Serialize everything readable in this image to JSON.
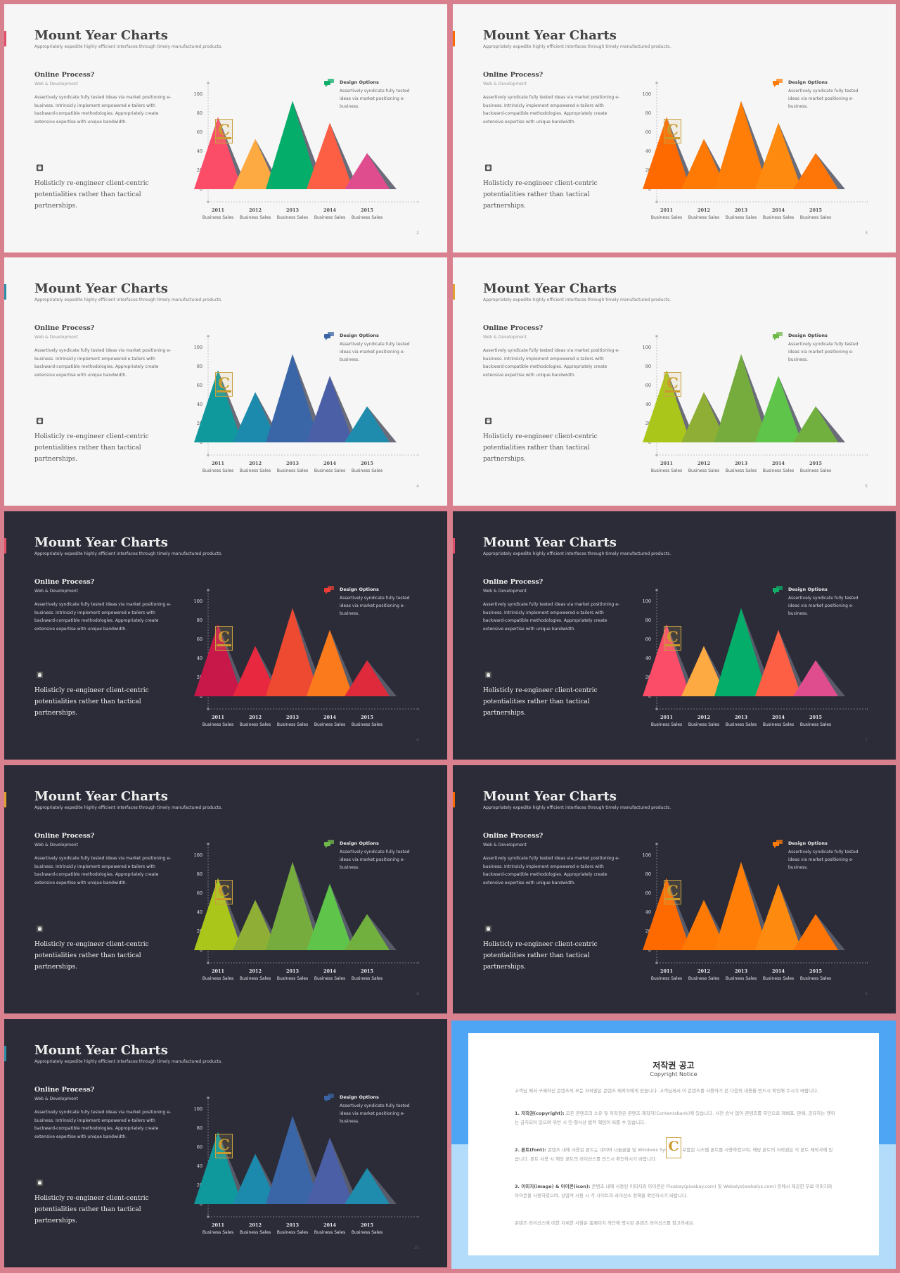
{
  "slide_common": {
    "title": "Mount Year Charts",
    "subtitle": "Appropriately expedite highly efficient interfaces through timely manufactured products.",
    "online_heading": "Online Process?",
    "online_sub": "Web & Development",
    "body": "Assertively syndicate fully tested ideas via market positioning e-business. Intrinsicly implement empowered e-tailers with backward-compatible methodologies. Appropriately create extensive expertise with unique bandwidth.",
    "holistic": "Holisticly re-engineer client-centric potentialities rather than tactical partnerships.",
    "design_title": "Design Options",
    "design_text": "Assertively syndicate fully tested ideas via market positioning e-business.",
    "logo_letter": "C"
  },
  "chart_data": {
    "type": "area",
    "categories": [
      "2011",
      "2012",
      "2013",
      "2014",
      "2015"
    ],
    "category_sublabel": "Business Sales",
    "values": [
      76,
      53,
      93,
      70,
      38
    ],
    "y_ticks": [
      "0",
      "20",
      "40",
      "60",
      "80",
      "100"
    ],
    "ylim": [
      0,
      100
    ]
  },
  "slides": [
    {
      "theme": "light",
      "page": "2",
      "accent": "#e0506a",
      "icon_color": "#0fae6a",
      "colors": [
        "#fb4d68",
        "#fdaa43",
        "#04ad6a",
        "#fd5f45",
        "#e04d8f"
      ]
    },
    {
      "theme": "light",
      "page": "3",
      "accent": "#ff6a00",
      "icon_color": "#ff7c0a",
      "colors": [
        "#ff6a00",
        "#ff7a05",
        "#ff7e08",
        "#ff8a10",
        "#ff7608"
      ]
    },
    {
      "theme": "light",
      "page": "4",
      "accent": "#2c8fa8",
      "icon_color": "#3a64a3",
      "colors": [
        "#10999c",
        "#1c8aac",
        "#3a66a8",
        "#4a5fa6",
        "#1f8cad"
      ]
    },
    {
      "theme": "light",
      "page": "5",
      "accent": "#e0a030",
      "icon_color": "#6fb84a",
      "colors": [
        "#aac61a",
        "#8fae35",
        "#76ac3d",
        "#5fc44a",
        "#71b03f"
      ]
    },
    {
      "theme": "dark",
      "page": "6",
      "accent": "#e0506a",
      "icon_color": "#ee3d36",
      "colors": [
        "#c8184a",
        "#e8283e",
        "#ee4a32",
        "#fa7a1c",
        "#de2a3a"
      ]
    },
    {
      "theme": "dark",
      "page": "7",
      "accent": "#e0506a",
      "icon_color": "#0fae6a",
      "colors": [
        "#fb4d68",
        "#fdaa43",
        "#04ad6a",
        "#fd5f45",
        "#e04d8f"
      ]
    },
    {
      "theme": "dark",
      "page": "8",
      "accent": "#e0a030",
      "icon_color": "#6fb84a",
      "colors": [
        "#aac61a",
        "#8fae35",
        "#76ac3d",
        "#5fc44a",
        "#71b03f"
      ]
    },
    {
      "theme": "dark",
      "page": "9",
      "accent": "#ff6a00",
      "icon_color": "#ff7c0a",
      "colors": [
        "#ff6a00",
        "#ff7a05",
        "#ff7e08",
        "#ff8a10",
        "#ff7608"
      ]
    },
    {
      "theme": "dark",
      "page": "10",
      "accent": "#2c8fa8",
      "icon_color": "#3a64a3",
      "colors": [
        "#10999c",
        "#1c8aac",
        "#3a66a8",
        "#4a5fa6",
        "#1f8cad"
      ]
    }
  ],
  "notice": {
    "title": "저작권 공고",
    "subtitle": "Copyright Notice",
    "intro": "고객님 께서 구매하신 콘텐츠의 모든 저작권은 콘텐츠 제작자에게 있습니다. 고객님께서 이 콘텐츠를 사용하기 전 다음의 내용을 반드시 확인해 주시기 바랍니다.",
    "p1_label": "1. 저작권(copyright):",
    "p1_text": "모든 콘텐츠의 소유 및 저작권은 콘텐츠 제작자(Contentsbank)에 있습니다. 사전 승낙 없이 콘텐츠를 무단으로 재배포, 판매, 공유하는 행위는 금지되어 있으며 위반 시 민·형사상 법적 책임이 따를 수 있습니다.",
    "p2_label": "2. 폰트(font):",
    "p2_text": "콘텐츠 내에 사용된 폰트는 네이버 나눔글꼴 및 Windows System에 포함된 시스템 폰트를 사용하였으며, 해당 폰트의 저작권은 각 폰트 제작사에 있습니다. 폰트 사용 시 해당 폰트의 라이선스를 반드시 확인하시기 바랍니다.",
    "p3_label": "3. 이미지(image) & 아이콘(icon):",
    "p3_text": "콘텐츠 내에 사용된 이미지와 아이콘은 Pixabay(pixabay.com) 및 Webalys(webalys.com) 등에서 제공한 무료 이미지와 아이콘을 사용하였으며, 상업적 사용 시 각 사이트의 라이선스 정책을 확인하시기 바랍니다.",
    "outro": "콘텐츠 라이선스에 대한 자세한 사항은 홈페이지 하단에 명시된 콘텐츠 라이선스를 참고하세요.",
    "logo_letter": "C"
  }
}
